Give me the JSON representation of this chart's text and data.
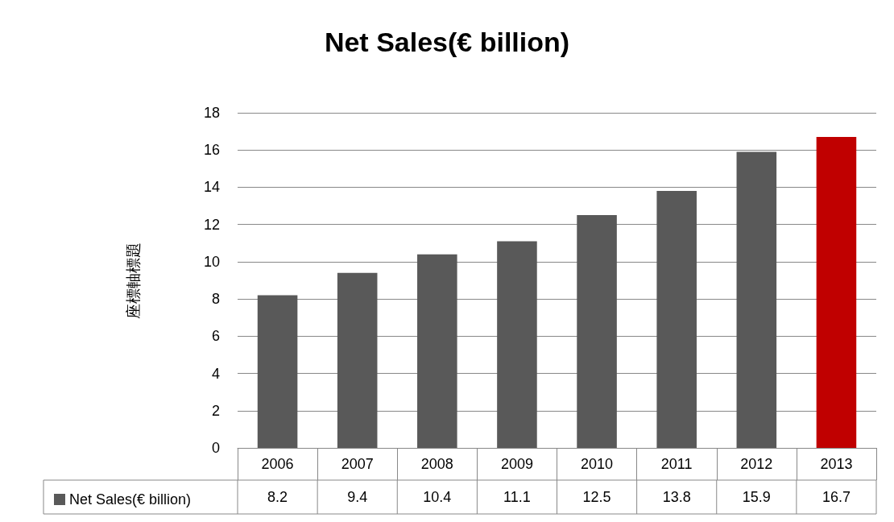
{
  "chart_data": {
    "type": "bar",
    "title": "Net Sales(€ billion)",
    "ylabel": "座標軸標題",
    "categories": [
      "2006",
      "2007",
      "2008",
      "2009",
      "2010",
      "2011",
      "2012",
      "2013"
    ],
    "series": [
      {
        "name": "Net Sales(€ billion)",
        "color": "#595959",
        "colors": [
          "#595959",
          "#595959",
          "#595959",
          "#595959",
          "#595959",
          "#595959",
          "#595959",
          "#c00000"
        ],
        "values": [
          8.2,
          9.4,
          10.4,
          11.1,
          12.5,
          13.8,
          15.9,
          16.7
        ]
      }
    ],
    "ylim": [
      0,
      18
    ],
    "yticks": [
      0,
      2,
      4,
      6,
      8,
      10,
      12,
      14,
      16,
      18
    ],
    "grid": "y",
    "legend": "bottom left",
    "data_labels": true
  }
}
